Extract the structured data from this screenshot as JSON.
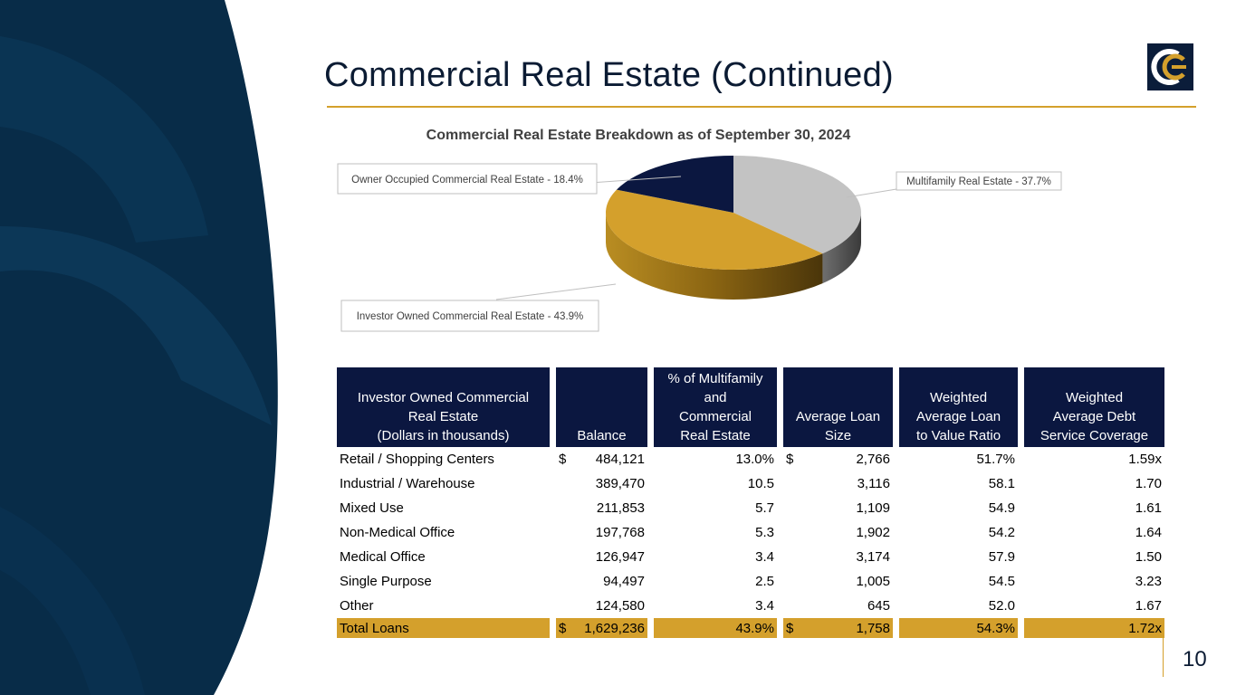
{
  "header": {
    "title": "Commercial Real Estate (Continued)",
    "page_number": "10"
  },
  "colors": {
    "navy": "#0b1740",
    "gold": "#d4a02c",
    "gray": "#c3c3c3",
    "dark_blue_bg": "#082c48"
  },
  "chart_data": {
    "type": "pie",
    "title": "Commercial Real Estate Breakdown as of September 30, 2024",
    "slices": [
      {
        "label": "Multifamily Real Estate -  37.7%",
        "value": 37.7,
        "color": "#c3c3c3"
      },
      {
        "label": "Investor Owned Commercial Real Estate -  43.9%",
        "value": 43.9,
        "color": "#d4a02c"
      },
      {
        "label": "Owner Occupied Commercial Real Estate - 18.4%",
        "value": 18.4,
        "color": "#0b1740"
      }
    ]
  },
  "table": {
    "headers": [
      [
        "Investor Owned Commercial",
        "Real Estate",
        "(Dollars in thousands)"
      ],
      [
        "Balance"
      ],
      [
        "% of Multifamily",
        "and",
        "Commercial",
        "Real Estate"
      ],
      [
        "Average Loan",
        "Size"
      ],
      [
        "Weighted",
        "Average Loan",
        "to Value Ratio"
      ],
      [
        "Weighted",
        "Average Debt",
        "Service Coverage"
      ]
    ],
    "rows": [
      {
        "category": "Retail / Shopping Centers",
        "balance_cur": "$",
        "balance": "484,121",
        "pct": "13.0%",
        "avg_cur": "$",
        "avg": "2,766",
        "ltv": "51.7%",
        "dsc": "1.59x"
      },
      {
        "category": "Industrial / Warehouse",
        "balance_cur": "",
        "balance": "389,470",
        "pct": "10.5",
        "avg_cur": "",
        "avg": "3,116",
        "ltv": "58.1",
        "dsc": "1.70"
      },
      {
        "category": "Mixed Use",
        "balance_cur": "",
        "balance": "211,853",
        "pct": "5.7",
        "avg_cur": "",
        "avg": "1,109",
        "ltv": "54.9",
        "dsc": "1.61"
      },
      {
        "category": "Non-Medical Office",
        "balance_cur": "",
        "balance": "197,768",
        "pct": "5.3",
        "avg_cur": "",
        "avg": "1,902",
        "ltv": "54.2",
        "dsc": "1.64"
      },
      {
        "category": "Medical Office",
        "balance_cur": "",
        "balance": "126,947",
        "pct": "3.4",
        "avg_cur": "",
        "avg": "3,174",
        "ltv": "57.9",
        "dsc": "1.50"
      },
      {
        "category": "Single Purpose",
        "balance_cur": "",
        "balance": "94,497",
        "pct": "2.5",
        "avg_cur": "",
        "avg": "1,005",
        "ltv": "54.5",
        "dsc": "3.23"
      },
      {
        "category": "Other",
        "balance_cur": "",
        "balance": "124,580",
        "pct": "3.4",
        "avg_cur": "",
        "avg": "645",
        "ltv": "52.0",
        "dsc": "1.67"
      }
    ],
    "total": {
      "category": "Total Loans",
      "balance_cur": "$",
      "balance": "1,629,236",
      "pct": "43.9%",
      "avg_cur": "$",
      "avg": "1,758",
      "ltv": "54.3%",
      "dsc": "1.72x"
    }
  }
}
